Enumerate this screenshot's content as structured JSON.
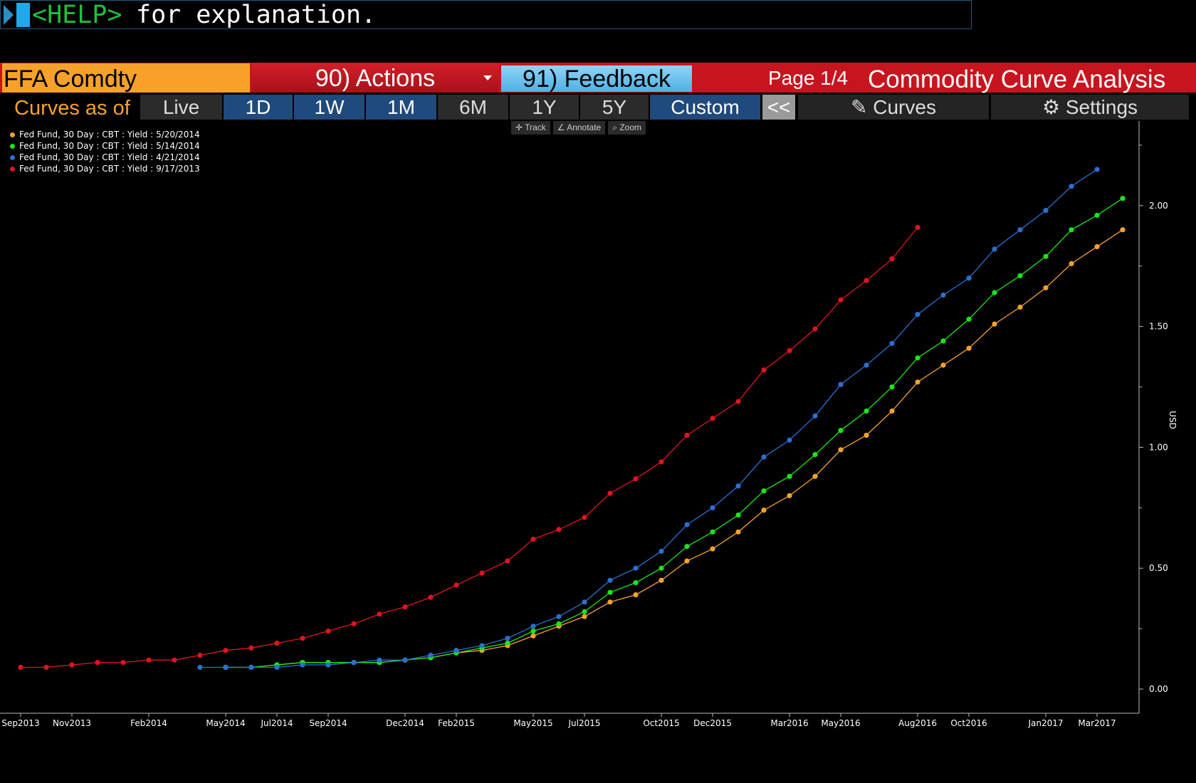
{
  "command_line": {
    "help_key": "<HELP>",
    "text": "for explanation."
  },
  "header": {
    "ticker": "FFA Comdty",
    "actions_label": "90) Actions",
    "feedback_label": "91) Feedback",
    "page_info": "Page 1/4",
    "title": "Commodity Curve Analysis"
  },
  "tabs": {
    "curves_as_of_label": "Curves as of",
    "items": [
      {
        "label": "Live"
      },
      {
        "label": "1D"
      },
      {
        "label": "1W"
      },
      {
        "label": "1M"
      },
      {
        "label": "6M"
      },
      {
        "label": "1Y"
      },
      {
        "label": "5Y"
      },
      {
        "label": "Custom"
      }
    ],
    "collapse_label": "<<",
    "curves_label": "Curves",
    "settings_label": "Settings"
  },
  "chart_tools": {
    "track": "Track",
    "annotate": "Annotate",
    "zoom": "Zoom"
  },
  "colors": {
    "orange": "#f7a12b",
    "green": "#19e619",
    "blue": "#2a6fd1",
    "red": "#e0141e"
  },
  "chart_data": {
    "type": "line",
    "ylabel": "USD",
    "ylim": [
      -0.1,
      2.35
    ],
    "y_ticks": [
      "0.00",
      "0.50",
      "1.00",
      "1.50",
      "2.00"
    ],
    "x_tick_labels": [
      "Sep2013",
      "Nov2013",
      "Feb2014",
      "May2014",
      "Jul2014",
      "Sep2014",
      "Dec2014",
      "Feb2015",
      "May2015",
      "Jul2015",
      "Oct2015",
      "Dec2015",
      "Mar2016",
      "May2016",
      "Aug2016",
      "Oct2016",
      "Jan2017",
      "Mar2017"
    ],
    "x_tick_months": [
      "2013-09",
      "2013-11",
      "2014-02",
      "2014-05",
      "2014-07",
      "2014-09",
      "2014-12",
      "2015-02",
      "2015-05",
      "2015-07",
      "2015-10",
      "2015-12",
      "2016-03",
      "2016-05",
      "2016-08",
      "2016-10",
      "2017-01",
      "2017-03"
    ],
    "x_start": "2013-09",
    "series": [
      {
        "name": "Fed Fund, 30 Day : CBT : Yield : 5/20/2014",
        "color": "#f7a12b",
        "start_month": "2014-05",
        "values": [
          0.09,
          0.09,
          0.1,
          0.11,
          0.11,
          0.11,
          0.11,
          0.12,
          0.13,
          0.15,
          0.16,
          0.18,
          0.22,
          0.26,
          0.3,
          0.36,
          0.39,
          0.45,
          0.53,
          0.58,
          0.65,
          0.74,
          0.8,
          0.88,
          0.99,
          1.05,
          1.15,
          1.27,
          1.34,
          1.41,
          1.51,
          1.58,
          1.66,
          1.76,
          1.83,
          1.9
        ]
      },
      {
        "name": "Fed Fund, 30 Day : CBT : Yield : 5/14/2014",
        "color": "#19e619",
        "start_month": "2014-05",
        "values": [
          0.09,
          0.09,
          0.1,
          0.11,
          0.11,
          0.11,
          0.11,
          0.12,
          0.13,
          0.15,
          0.17,
          0.19,
          0.24,
          0.27,
          0.32,
          0.4,
          0.44,
          0.5,
          0.59,
          0.65,
          0.72,
          0.82,
          0.88,
          0.97,
          1.07,
          1.15,
          1.25,
          1.37,
          1.44,
          1.53,
          1.64,
          1.71,
          1.79,
          1.9,
          1.96,
          2.03
        ]
      },
      {
        "name": "Fed Fund, 30 Day : CBT : Yield : 4/21/2014",
        "color": "#2a6fd1",
        "start_month": "2014-04",
        "values": [
          0.09,
          0.09,
          0.09,
          0.09,
          0.1,
          0.1,
          0.11,
          0.12,
          0.12,
          0.14,
          0.16,
          0.18,
          0.21,
          0.26,
          0.3,
          0.36,
          0.45,
          0.5,
          0.57,
          0.68,
          0.75,
          0.84,
          0.96,
          1.03,
          1.13,
          1.26,
          1.34,
          1.43,
          1.55,
          1.63,
          1.7,
          1.82,
          1.9,
          1.98,
          2.08,
          2.15
        ]
      },
      {
        "name": "Fed Fund, 30 Day : CBT : Yield : 9/17/2013",
        "color": "#e0141e",
        "start_month": "2013-09",
        "values": [
          0.09,
          0.09,
          0.1,
          0.11,
          0.11,
          0.12,
          0.12,
          0.14,
          0.16,
          0.17,
          0.19,
          0.21,
          0.24,
          0.27,
          0.31,
          0.34,
          0.38,
          0.43,
          0.48,
          0.53,
          0.62,
          0.66,
          0.71,
          0.81,
          0.87,
          0.94,
          1.05,
          1.12,
          1.19,
          1.32,
          1.4,
          1.49,
          1.61,
          1.69,
          1.78,
          1.91
        ]
      }
    ]
  }
}
